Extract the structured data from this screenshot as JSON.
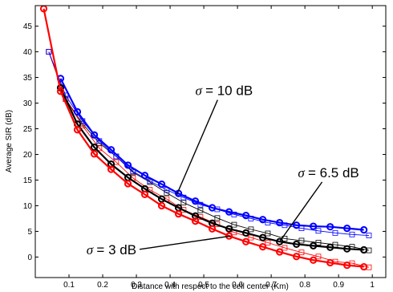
{
  "chart_data": {
    "type": "line",
    "xlabel": "Distance with respect to the cell center (Km)",
    "ylabel": "Average SIR (dB)",
    "xlim": [
      0,
      1.04
    ],
    "ylim": [
      -4,
      49
    ],
    "xticks": [
      "0.1",
      "0.2",
      "0.3",
      "0.4",
      "0.5",
      "0.6",
      "0.7",
      "0.8",
      "0.9",
      "1"
    ],
    "xtick_values": [
      0.1,
      0.2,
      0.3,
      0.4,
      0.5,
      0.6,
      0.7,
      0.8,
      0.9,
      1.0
    ],
    "yticks": [
      "0",
      "5",
      "10",
      "15",
      "20",
      "25",
      "30",
      "35",
      "40",
      "45"
    ],
    "ytick_values": [
      0,
      5,
      10,
      15,
      20,
      25,
      30,
      35,
      40,
      45
    ],
    "grid": false,
    "series": [
      {
        "name": "σ = 10 dB",
        "color": "#0000ff",
        "marker": "circle",
        "x": [
          0.075,
          0.125,
          0.175,
          0.225,
          0.275,
          0.325,
          0.375,
          0.425,
          0.475,
          0.525,
          0.575,
          0.625,
          0.675,
          0.725,
          0.775,
          0.825,
          0.875,
          0.925,
          0.975
        ],
        "y": [
          34.8,
          28.3,
          23.8,
          20.9,
          17.9,
          15.9,
          14.2,
          12.4,
          10.9,
          9.6,
          8.8,
          8.1,
          7.3,
          6.7,
          6.2,
          6.0,
          5.9,
          5.6,
          5.3
        ]
      },
      {
        "name": "σ = 6.5 dB",
        "color": "#000000",
        "marker": "circle",
        "x": [
          0.075,
          0.125,
          0.175,
          0.225,
          0.275,
          0.325,
          0.375,
          0.425,
          0.475,
          0.525,
          0.575,
          0.625,
          0.675,
          0.725,
          0.775,
          0.825,
          0.875,
          0.925,
          0.975
        ],
        "y": [
          33.0,
          25.9,
          21.4,
          18.1,
          15.5,
          13.3,
          11.3,
          9.6,
          8.0,
          6.6,
          5.5,
          4.7,
          3.8,
          3.0,
          2.5,
          2.2,
          1.9,
          1.6,
          1.4
        ]
      },
      {
        "name": "σ = 3 dB",
        "color": "#ff0000",
        "marker": "circle",
        "x": [
          0.025,
          0.075,
          0.125,
          0.175,
          0.225,
          0.275,
          0.325,
          0.375,
          0.425,
          0.475,
          0.525,
          0.575,
          0.625,
          0.675,
          0.725,
          0.775,
          0.825,
          0.875,
          0.925,
          0.975
        ],
        "y": [
          48.4,
          32.3,
          24.8,
          20.1,
          17.1,
          14.3,
          12.2,
          10.0,
          8.4,
          7.0,
          5.5,
          4.1,
          3.0,
          2.0,
          1.0,
          0.1,
          -0.6,
          -1.1,
          -1.6,
          -1.9
        ]
      },
      {
        "name": "",
        "color": "#000000",
        "marker": "square",
        "x": [
          0.04,
          0.09,
          0.14,
          0.19,
          0.24,
          0.29,
          0.34,
          0.39,
          0.44,
          0.49,
          0.54,
          0.59,
          0.64,
          0.69,
          0.74,
          0.79,
          0.84,
          0.89,
          0.94,
          0.99
        ],
        "y": [
          40.0,
          30.8,
          26.0,
          22.2,
          19.6,
          16.5,
          14.6,
          12.5,
          10.6,
          9.1,
          7.6,
          6.3,
          5.4,
          4.6,
          3.6,
          3.2,
          2.8,
          2.4,
          2.0,
          1.3
        ]
      },
      {
        "name": "",
        "color": "#ff0000",
        "marker": "square",
        "x": [
          0.04,
          0.09,
          0.14,
          0.19,
          0.24,
          0.29,
          0.34,
          0.39,
          0.44,
          0.49,
          0.54,
          0.59,
          0.64,
          0.69,
          0.74,
          0.79,
          0.84,
          0.89,
          0.94,
          0.99
        ],
        "y": [
          40.0,
          30.8,
          25.6,
          21.2,
          18.5,
          15.4,
          13.1,
          11.3,
          9.2,
          7.8,
          6.4,
          4.8,
          3.8,
          2.8,
          1.8,
          0.9,
          0.1,
          -0.9,
          -1.2,
          -2.0
        ]
      },
      {
        "name": "",
        "color": "#0000ff",
        "marker": "square",
        "x": [
          0.04,
          0.09,
          0.14,
          0.19,
          0.24,
          0.29,
          0.34,
          0.39,
          0.44,
          0.49,
          0.54,
          0.59,
          0.64,
          0.69,
          0.74,
          0.79,
          0.84,
          0.89,
          0.94,
          0.99
        ],
        "y": [
          40.0,
          31.5,
          26.5,
          22.6,
          19.6,
          16.7,
          14.8,
          13.1,
          11.6,
          10.2,
          9.3,
          8.3,
          7.5,
          6.7,
          6.2,
          5.6,
          5.1,
          4.7,
          4.4,
          4.2
        ]
      }
    ],
    "annotations": [
      {
        "text_sym": "σ",
        "text_val": "= 10",
        "text_unit": "dB",
        "target_x": 0.42,
        "target_y": 12.2,
        "anchor_x": 0.56,
        "anchor_y": 32.5
      },
      {
        "text_sym": "σ",
        "text_val": "= 6.5",
        "text_unit": "dB",
        "target_x": 0.725,
        "target_y": 3.0,
        "anchor_x": 0.87,
        "anchor_y": 16.5
      },
      {
        "text_sym": "σ",
        "text_val": "= 3",
        "text_unit": "dB",
        "target_x": 0.58,
        "target_y": 4.1,
        "anchor_x": 0.3,
        "anchor_y": 1.5
      }
    ]
  }
}
